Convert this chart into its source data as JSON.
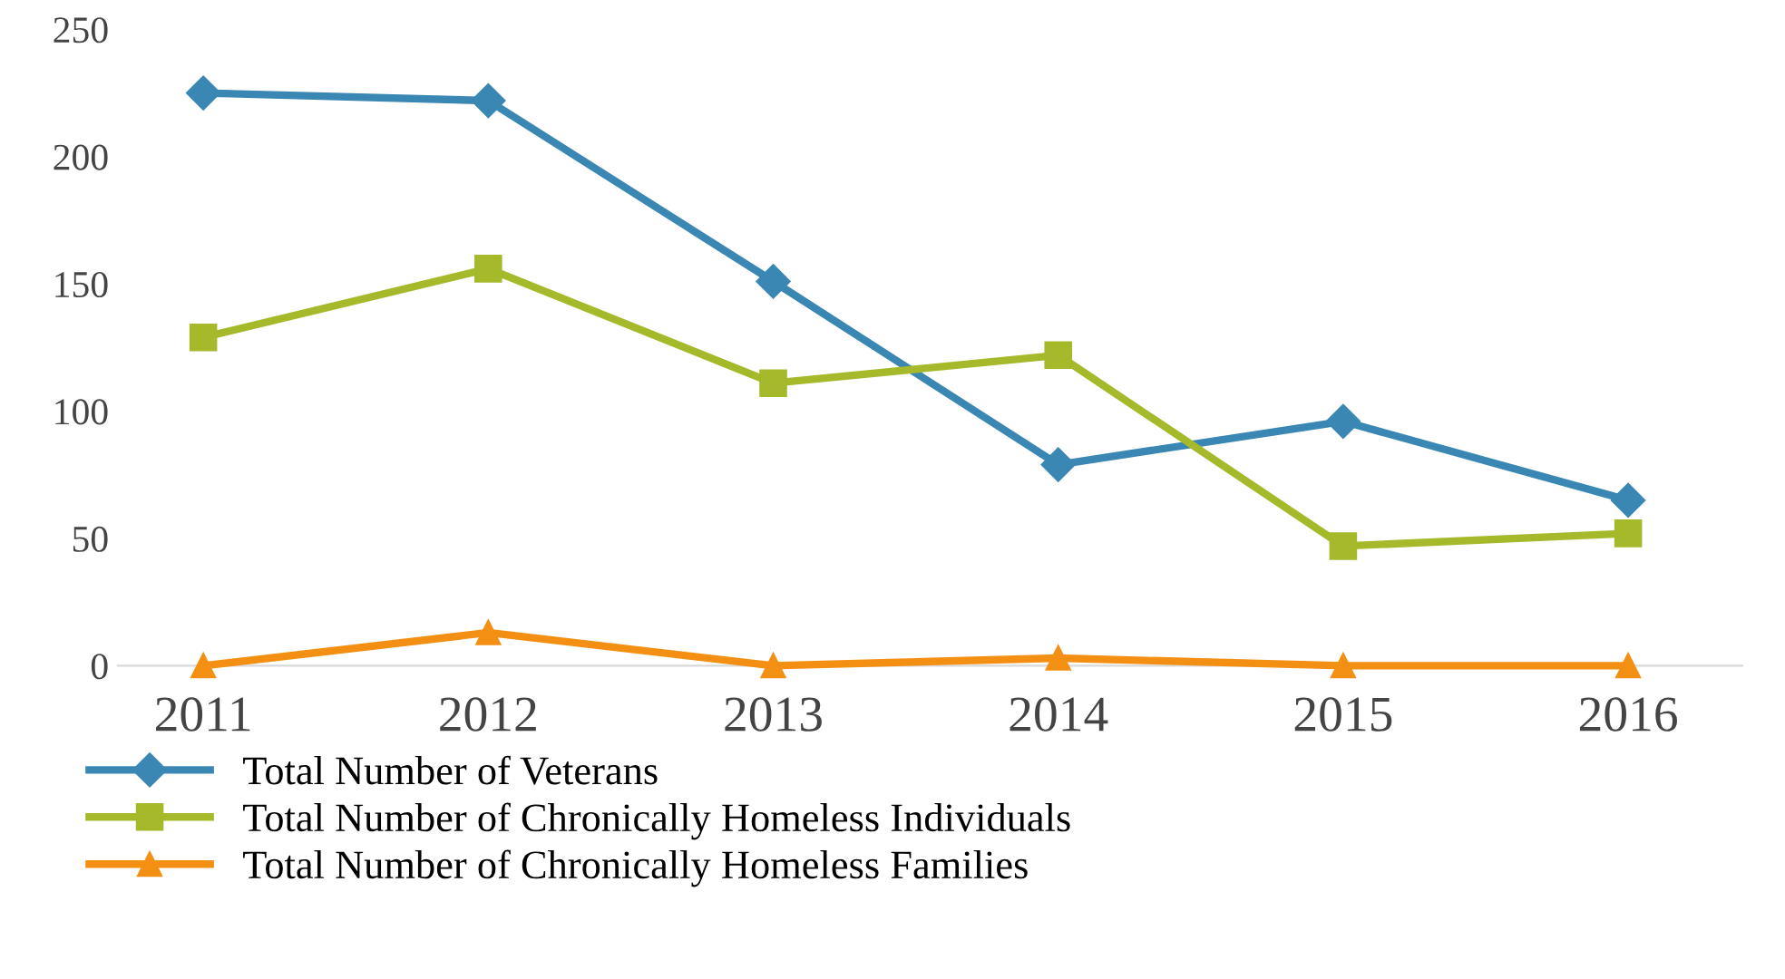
{
  "chart_data": {
    "type": "line",
    "categories": [
      "2011",
      "2012",
      "2013",
      "2014",
      "2015",
      "2016"
    ],
    "series": [
      {
        "name": "Total Number of Veterans",
        "color": "#3b87b4",
        "marker": "diamond",
        "values": [
          225,
          222,
          151,
          79,
          96,
          65
        ]
      },
      {
        "name": "Total Number of Chronically Homeless Individuals",
        "color": "#a5b92a",
        "marker": "square",
        "values": [
          129,
          156,
          111,
          122,
          47,
          52
        ]
      },
      {
        "name": "Total Number of Chronically Homeless Families",
        "color": "#f39014",
        "marker": "triangle",
        "values": [
          0,
          13,
          0,
          3,
          0,
          0
        ]
      }
    ],
    "ylim": [
      0,
      250
    ],
    "yticks": [
      0,
      50,
      100,
      150,
      200,
      250
    ],
    "grid": false,
    "legend": "bottom",
    "line_style": "solid"
  }
}
